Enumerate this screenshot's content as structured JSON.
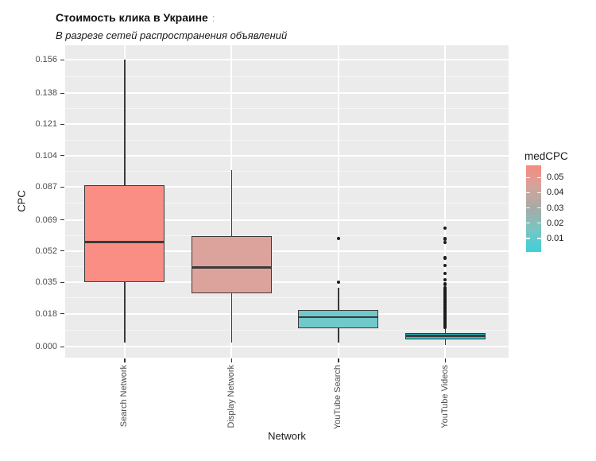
{
  "header": {
    "title": "Стоимость клика в Украине",
    "title_suffix": ":",
    "subtitle": "В разрезе сетей распространения объявлений"
  },
  "chart_data": {
    "type": "boxplot",
    "title": "Стоимость клика в Украине",
    "subtitle": "В разрезе сетей распространения объявлений",
    "xlabel": "Network",
    "ylabel": "CPC",
    "grid": "on",
    "categories": [
      "Search Network",
      "Display Network",
      "YouTube Search",
      "YouTube Videos"
    ],
    "y_axis": {
      "domain": [
        -0.006,
        0.164
      ],
      "ticks": [
        {
          "value": 0.0,
          "label": "0.000"
        },
        {
          "value": 0.018,
          "label": "0.018"
        },
        {
          "value": 0.035,
          "label": "0.035"
        },
        {
          "value": 0.052,
          "label": "0.052"
        },
        {
          "value": 0.069,
          "label": "0.069"
        },
        {
          "value": 0.087,
          "label": "0.087"
        },
        {
          "value": 0.104,
          "label": "0.104"
        },
        {
          "value": 0.121,
          "label": "0.121"
        },
        {
          "value": 0.138,
          "label": "0.138"
        },
        {
          "value": 0.156,
          "label": "0.156"
        }
      ]
    },
    "series": [
      {
        "name": "Search Network",
        "fill": "#FB8E84",
        "medCPC": 0.057,
        "whisker_low": 0.002,
        "q1": 0.035,
        "median": 0.057,
        "q3": 0.088,
        "whisker_high": 0.156,
        "outliers": []
      },
      {
        "name": "Display Network",
        "fill": "#DCA39C",
        "medCPC": 0.043,
        "whisker_low": 0.002,
        "q1": 0.029,
        "median": 0.043,
        "q3": 0.06,
        "whisker_high": 0.096,
        "outliers": []
      },
      {
        "name": "YouTube Search",
        "fill": "#70CACB",
        "medCPC": 0.016,
        "whisker_low": 0.002,
        "q1": 0.01,
        "median": 0.016,
        "q3": 0.02,
        "whisker_high": 0.032,
        "outliers": [
          0.035,
          0.059
        ]
      },
      {
        "name": "YouTube Videos",
        "fill": "#20C8CF",
        "medCPC": 0.006,
        "whisker_low": 0.001,
        "q1": 0.004,
        "median": 0.006,
        "q3": 0.0075,
        "whisker_high": 0.01,
        "outliers": [
          0.0105,
          0.0112,
          0.0119,
          0.0126,
          0.0133,
          0.014,
          0.0147,
          0.0154,
          0.0161,
          0.0168,
          0.0175,
          0.0182,
          0.0189,
          0.0196,
          0.0203,
          0.021,
          0.0217,
          0.0224,
          0.0231,
          0.0238,
          0.0245,
          0.0252,
          0.0259,
          0.0266,
          0.0273,
          0.028,
          0.0287,
          0.0294,
          0.0301,
          0.0308,
          0.0315,
          0.0322,
          0.034,
          0.0363,
          0.0397,
          0.044,
          0.0483,
          0.0566,
          0.0587,
          0.0645
        ]
      }
    ],
    "legend": {
      "title": "medCPC",
      "position": "right",
      "bar_domain": [
        0.058,
        0.001
      ],
      "ticks": [
        {
          "value": 0.05,
          "label": "0.05"
        },
        {
          "value": 0.04,
          "label": "0.04"
        },
        {
          "value": 0.03,
          "label": "0.03"
        },
        {
          "value": 0.02,
          "label": "0.02"
        },
        {
          "value": 0.01,
          "label": "0.01"
        }
      ],
      "gradient_stops": [
        {
          "pos": 0.0,
          "color": "#F68B7F"
        },
        {
          "pos": 0.25,
          "color": "#D4A49D"
        },
        {
          "pos": 0.5,
          "color": "#A5ABA7"
        },
        {
          "pos": 0.75,
          "color": "#77C6C5"
        },
        {
          "pos": 1.0,
          "color": "#3ED0D8"
        }
      ]
    },
    "colors": {
      "panel_bg": "#EBEBEB",
      "grid_major": "#FFFFFF",
      "grid_minor": "rgba(255,255,255,0.55)",
      "stroke": "#3A3A3A",
      "outlier": "#1C1C1C",
      "tick_text": "#4D4D4D",
      "tick_mark": "#333333"
    }
  }
}
